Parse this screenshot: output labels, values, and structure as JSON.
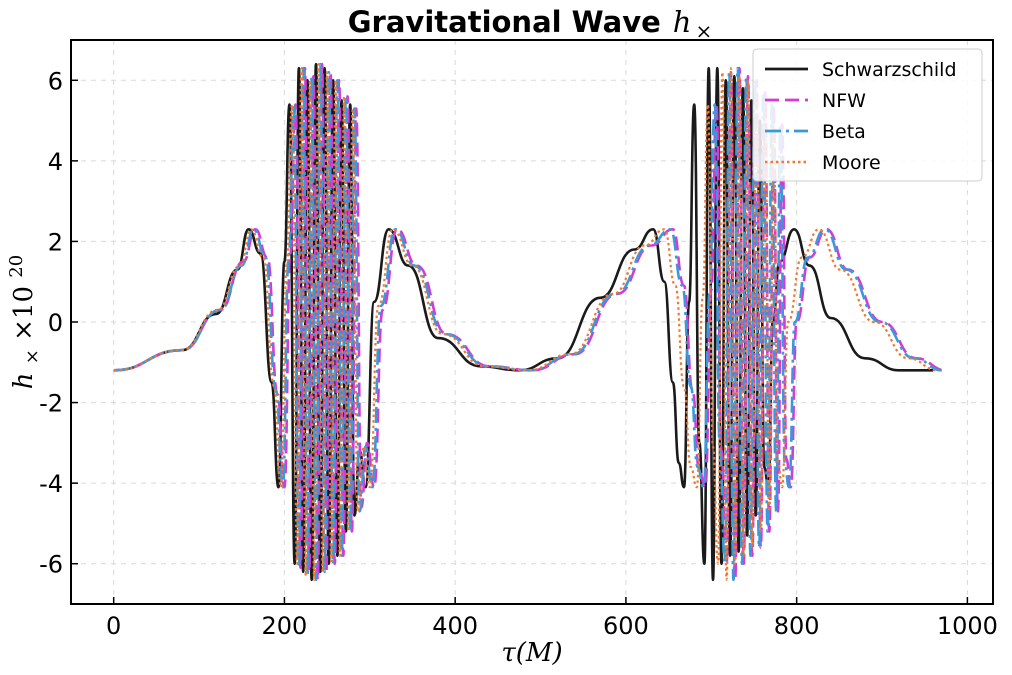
{
  "chart_data": {
    "type": "line",
    "title": "Gravitational Wave",
    "title_symbol": "h",
    "title_symbol_sub": "×",
    "xlabel": "τ(M)",
    "ylabel_main": "h",
    "ylabel_sub": "×",
    "ylabel_times": "×10",
    "ylabel_exp": "20",
    "xlim": [
      -50,
      1030
    ],
    "ylim": [
      -7,
      7
    ],
    "xticks": [
      0,
      200,
      400,
      600,
      800,
      1000
    ],
    "xtick_labels": [
      "0",
      "200",
      "400",
      "600",
      "800",
      "1000"
    ],
    "yticks": [
      -6,
      -4,
      -2,
      0,
      2,
      4,
      6
    ],
    "ytick_labels": [
      "-6",
      "-4",
      "-2",
      "0",
      "2",
      "4",
      "6"
    ],
    "grid": true,
    "legend_position": "top-right",
    "series": [
      {
        "name": "Schwarzschild",
        "color": "#1a1a1a",
        "dash": "solid",
        "x": [
          0,
          80,
          120,
          145,
          158,
          172,
          185,
          193,
          200,
          206,
          212,
          217,
          222,
          227,
          232,
          237,
          242,
          247,
          252,
          257,
          262,
          267,
          272,
          277,
          282,
          288,
          295,
          305,
          322,
          345,
          380,
          430,
          475,
          520,
          570,
          610,
          632,
          645,
          655,
          662,
          668,
          674,
          680,
          686,
          692,
          697,
          702,
          707,
          712,
          717,
          722,
          727,
          732,
          737,
          742,
          747,
          752,
          757,
          762,
          767,
          772,
          780,
          797,
          815,
          840,
          880,
          920,
          960
        ],
        "y": [
          -1.2,
          -0.7,
          0.2,
          1.3,
          2.3,
          1.7,
          -1.5,
          -4.1,
          1.5,
          5.4,
          -6.0,
          6.3,
          -6.2,
          6.0,
          -6.4,
          6.4,
          -6.2,
          6.3,
          -6.0,
          6.0,
          -5.8,
          5.5,
          -5.2,
          5.4,
          -4.8,
          -3.2,
          -4.1,
          0.5,
          2.3,
          1.4,
          -0.4,
          -1.1,
          -1.2,
          -0.9,
          0.6,
          1.8,
          2.3,
          1.0,
          -1.5,
          -3.5,
          -4.1,
          0.5,
          5.4,
          -3.0,
          -6.0,
          6.3,
          -6.4,
          6.3,
          -6.0,
          6.0,
          -5.8,
          6.1,
          -5.7,
          5.8,
          -5.3,
          5.5,
          -4.8,
          5.0,
          -3.6,
          -4.1,
          0.0,
          1.5,
          2.3,
          1.4,
          0.1,
          -0.9,
          -1.2,
          -1.2
        ]
      },
      {
        "name": "NFW",
        "color": "#d63ad6",
        "dash": "dash",
        "x": [
          0,
          80,
          125,
          152,
          166,
          180,
          192,
          200,
          207,
          213,
          219,
          224,
          229,
          234,
          239,
          244,
          249,
          254,
          259,
          264,
          269,
          274,
          279,
          284,
          290,
          297,
          305,
          315,
          332,
          355,
          390,
          440,
          490,
          540,
          590,
          630,
          655,
          668,
          678,
          686,
          693,
          700,
          706,
          712,
          718,
          723,
          728,
          733,
          738,
          743,
          748,
          753,
          758,
          763,
          768,
          773,
          778,
          783,
          788,
          793,
          800,
          815,
          835,
          860,
          900,
          940,
          975
        ],
        "y": [
          -1.2,
          -0.7,
          0.3,
          1.5,
          2.3,
          1.6,
          -1.8,
          -4.1,
          1.7,
          5.4,
          -6.1,
          6.3,
          -6.2,
          6.1,
          -6.4,
          6.4,
          -6.2,
          6.2,
          -6.0,
          6.0,
          -5.8,
          5.6,
          -5.2,
          5.3,
          -4.6,
          -3.0,
          -4.1,
          0.3,
          2.3,
          1.4,
          -0.3,
          -1.1,
          -1.2,
          -0.8,
          0.7,
          1.9,
          2.3,
          0.9,
          -1.7,
          -3.7,
          -4.1,
          0.8,
          5.4,
          -3.2,
          -6.0,
          6.2,
          -6.4,
          6.3,
          -6.0,
          6.1,
          -5.8,
          6.0,
          -5.6,
          5.7,
          -5.2,
          5.4,
          -4.7,
          4.9,
          -3.4,
          -4.1,
          0.0,
          1.6,
          2.3,
          1.3,
          0.0,
          -0.9,
          -1.2
        ]
      },
      {
        "name": "Beta",
        "color": "#3a9ad9",
        "dash": "dashdot",
        "x": [
          0,
          80,
          125,
          150,
          164,
          178,
          190,
          198,
          205,
          211,
          217,
          222,
          227,
          232,
          237,
          242,
          247,
          252,
          257,
          262,
          267,
          272,
          277,
          282,
          288,
          295,
          303,
          313,
          330,
          352,
          388,
          438,
          488,
          538,
          588,
          628,
          652,
          666,
          676,
          684,
          691,
          698,
          704,
          710,
          716,
          721,
          726,
          731,
          736,
          741,
          746,
          751,
          756,
          761,
          766,
          771,
          776,
          781,
          786,
          791,
          798,
          813,
          833,
          858,
          898,
          938,
          970
        ],
        "y": [
          -1.2,
          -0.7,
          0.3,
          1.4,
          2.3,
          1.6,
          -1.7,
          -4.1,
          1.6,
          5.4,
          -6.1,
          6.3,
          -6.3,
          6.1,
          -6.4,
          6.4,
          -6.2,
          6.2,
          -6.0,
          6.0,
          -5.8,
          5.6,
          -5.2,
          5.3,
          -4.7,
          -3.1,
          -4.1,
          0.4,
          2.3,
          1.4,
          -0.3,
          -1.1,
          -1.2,
          -0.8,
          0.7,
          1.9,
          2.3,
          0.9,
          -1.6,
          -3.6,
          -4.1,
          0.7,
          5.4,
          -3.1,
          -6.0,
          6.2,
          -6.4,
          6.3,
          -6.0,
          6.1,
          -5.8,
          6.0,
          -5.6,
          5.7,
          -5.2,
          5.4,
          -4.7,
          4.9,
          -3.5,
          -4.1,
          0.0,
          1.6,
          2.3,
          1.3,
          0.0,
          -0.9,
          -1.2
        ]
      },
      {
        "name": "Moore",
        "color": "#f07830",
        "dash": "dot",
        "x": [
          0,
          80,
          122,
          148,
          161,
          175,
          188,
          196,
          203,
          209,
          215,
          220,
          225,
          230,
          235,
          240,
          245,
          250,
          255,
          260,
          265,
          270,
          275,
          280,
          286,
          293,
          300,
          310,
          327,
          350,
          385,
          435,
          485,
          535,
          585,
          622,
          645,
          658,
          668,
          676,
          683,
          690,
          696,
          702,
          708,
          713,
          718,
          723,
          728,
          733,
          738,
          743,
          748,
          753,
          758,
          763,
          768,
          773,
          778,
          783,
          790,
          806,
          826,
          851,
          891,
          931,
          965
        ],
        "y": [
          -1.2,
          -0.7,
          0.3,
          1.4,
          2.3,
          1.6,
          -1.6,
          -4.1,
          1.5,
          5.4,
          -6.0,
          6.3,
          -6.3,
          6.0,
          -6.4,
          6.4,
          -6.2,
          6.2,
          -6.0,
          6.0,
          -5.8,
          5.6,
          -5.2,
          5.3,
          -4.7,
          -3.1,
          -4.1,
          0.4,
          2.3,
          1.4,
          -0.3,
          -1.1,
          -1.2,
          -0.8,
          0.7,
          1.9,
          2.3,
          0.9,
          -1.6,
          -3.6,
          -4.1,
          0.6,
          5.4,
          -3.1,
          -6.0,
          6.2,
          -6.4,
          6.3,
          -6.0,
          6.1,
          -5.8,
          6.0,
          -5.6,
          5.7,
          -5.2,
          5.4,
          -4.7,
          4.9,
          -3.5,
          -4.1,
          0.0,
          1.6,
          2.3,
          1.3,
          0.0,
          -0.9,
          -1.2
        ]
      }
    ]
  }
}
